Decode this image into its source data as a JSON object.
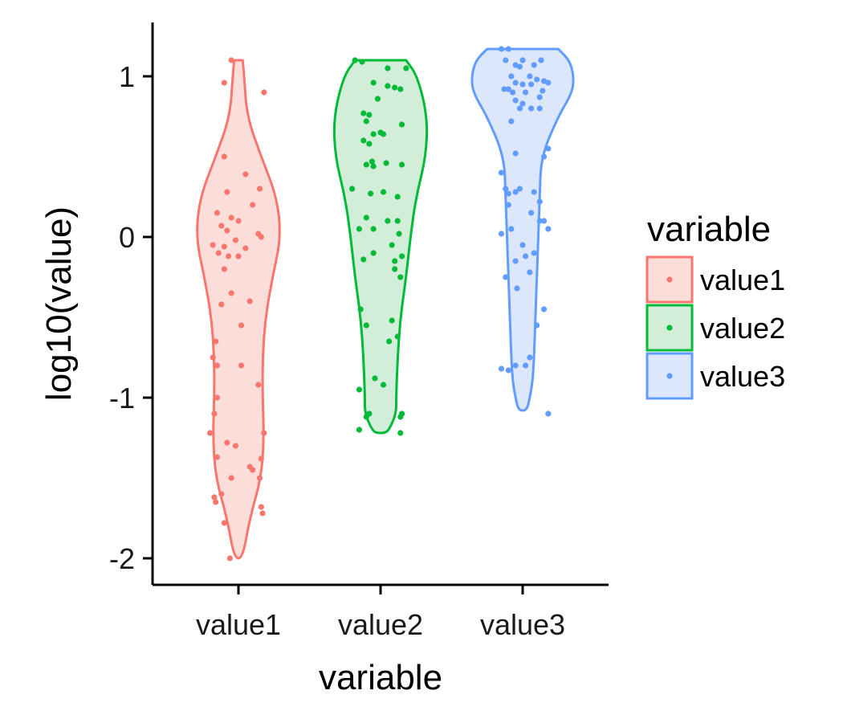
{
  "chart_data": {
    "type": "violin",
    "title": "",
    "xlabel": "variable",
    "ylabel": "log10(value)",
    "ylim": [
      -2.15,
      1.35
    ],
    "yticks": [
      1,
      0,
      -1,
      -2
    ],
    "ytick_labels": [
      "1",
      "0",
      "-1",
      "-2"
    ],
    "categories": [
      "value1",
      "value2",
      "value3"
    ],
    "grid": false,
    "legend": {
      "title": "variable",
      "placement": "right",
      "entries": [
        "value1",
        "value2",
        "value3"
      ]
    },
    "series": [
      {
        "name": "value1",
        "color": "#F8766D",
        "fill": "#FBDDDA",
        "profile": [
          [
            1.1,
            0.03
          ],
          [
            1.0,
            0.04
          ],
          [
            0.75,
            0.06
          ],
          [
            0.5,
            0.16
          ],
          [
            0.25,
            0.27
          ],
          [
            0.0,
            0.3
          ],
          [
            -0.25,
            0.24
          ],
          [
            -0.5,
            0.19
          ],
          [
            -0.75,
            0.17
          ],
          [
            -1.0,
            0.17
          ],
          [
            -1.25,
            0.18
          ],
          [
            -1.5,
            0.16
          ],
          [
            -1.75,
            0.08
          ],
          [
            -2.0,
            0.03
          ]
        ],
        "points": [
          [
            -0.05,
            1.1
          ],
          [
            -0.1,
            0.96
          ],
          [
            0.18,
            0.9
          ],
          [
            -0.1,
            0.5
          ],
          [
            0.05,
            0.39
          ],
          [
            0.15,
            0.3
          ],
          [
            -0.08,
            0.28
          ],
          [
            0.1,
            0.2
          ],
          [
            -0.15,
            0.15
          ],
          [
            -0.05,
            0.12
          ],
          [
            0.0,
            0.1
          ],
          [
            -0.12,
            0.07
          ],
          [
            -0.08,
            0.04
          ],
          [
            0.14,
            0.02
          ],
          [
            0.16,
            0.0
          ],
          [
            -0.02,
            -0.02
          ],
          [
            -0.18,
            -0.05
          ],
          [
            -0.1,
            -0.06
          ],
          [
            0.05,
            -0.07
          ],
          [
            -0.14,
            -0.1
          ],
          [
            -0.07,
            -0.12
          ],
          [
            0.0,
            -0.12
          ],
          [
            -0.1,
            -0.2
          ],
          [
            -0.05,
            -0.35
          ],
          [
            0.08,
            -0.4
          ],
          [
            -0.12,
            -0.42
          ],
          [
            0.02,
            -0.55
          ],
          [
            -0.16,
            -0.65
          ],
          [
            -0.18,
            -0.75
          ],
          [
            -0.15,
            -0.8
          ],
          [
            0.02,
            -0.8
          ],
          [
            0.14,
            -0.92
          ],
          [
            -0.15,
            -1.0
          ],
          [
            -0.17,
            -1.1
          ],
          [
            -0.2,
            -1.22
          ],
          [
            -0.08,
            -1.28
          ],
          [
            -0.02,
            -1.3
          ],
          [
            0.18,
            -1.22
          ],
          [
            -0.15,
            -1.37
          ],
          [
            0.16,
            -1.38
          ],
          [
            0.08,
            -1.43
          ],
          [
            0.1,
            -1.45
          ],
          [
            -0.05,
            -1.5
          ],
          [
            0.15,
            -1.5
          ],
          [
            -0.12,
            -1.6
          ],
          [
            -0.17,
            -1.62
          ],
          [
            -0.16,
            -1.65
          ],
          [
            0.16,
            -1.68
          ],
          [
            0.17,
            -1.72
          ],
          [
            -0.1,
            -1.78
          ],
          [
            -0.06,
            -2.0
          ]
        ]
      },
      {
        "name": "value2",
        "color": "#00BA38",
        "fill": "#D3EED8",
        "profile": [
          [
            1.1,
            0.18
          ],
          [
            1.0,
            0.26
          ],
          [
            0.75,
            0.33
          ],
          [
            0.5,
            0.32
          ],
          [
            0.25,
            0.25
          ],
          [
            0.0,
            0.21
          ],
          [
            -0.25,
            0.18
          ],
          [
            -0.5,
            0.14
          ],
          [
            -0.75,
            0.12
          ],
          [
            -1.0,
            0.11
          ],
          [
            -1.1,
            0.11
          ],
          [
            -1.2,
            0.06
          ],
          [
            -1.22,
            0.03
          ]
        ],
        "points": [
          [
            -0.18,
            1.1
          ],
          [
            -0.13,
            1.09
          ],
          [
            0.05,
            1.05
          ],
          [
            -0.05,
            0.96
          ],
          [
            0.18,
            1.05
          ],
          [
            0.1,
            0.93
          ],
          [
            0.05,
            0.94
          ],
          [
            0.14,
            0.92
          ],
          [
            -0.02,
            0.86
          ],
          [
            -0.12,
            0.77
          ],
          [
            -0.08,
            0.76
          ],
          [
            -0.1,
            0.72
          ],
          [
            0.0,
            0.65
          ],
          [
            0.15,
            0.7
          ],
          [
            -0.05,
            0.64
          ],
          [
            0.02,
            0.64
          ],
          [
            -0.12,
            0.6
          ],
          [
            -0.08,
            0.58
          ],
          [
            -0.06,
            0.47
          ],
          [
            0.04,
            0.46
          ],
          [
            -0.1,
            0.45
          ],
          [
            0.15,
            0.45
          ],
          [
            -0.05,
            0.44
          ],
          [
            0.02,
            0.28
          ],
          [
            -0.2,
            0.3
          ],
          [
            0.12,
            0.25
          ],
          [
            -0.07,
            0.27
          ],
          [
            -0.1,
            0.12
          ],
          [
            0.05,
            0.1
          ],
          [
            0.12,
            0.1
          ],
          [
            -0.15,
            0.05
          ],
          [
            -0.05,
            0.05
          ],
          [
            0.13,
            0.02
          ],
          [
            0.08,
            -0.05
          ],
          [
            -0.05,
            -0.1
          ],
          [
            0.1,
            -0.15
          ],
          [
            0.15,
            -0.12
          ],
          [
            -0.12,
            -0.14
          ],
          [
            0.1,
            -0.2
          ],
          [
            0.14,
            -0.25
          ],
          [
            -0.14,
            -0.45
          ],
          [
            0.08,
            -0.52
          ],
          [
            -0.1,
            -0.55
          ],
          [
            0.12,
            -0.62
          ],
          [
            0.06,
            -0.65
          ],
          [
            -0.04,
            -0.88
          ],
          [
            0.02,
            -0.92
          ],
          [
            -0.15,
            -0.95
          ],
          [
            -0.08,
            -1.1
          ],
          [
            -0.1,
            -1.12
          ],
          [
            0.14,
            -1.12
          ],
          [
            0.15,
            -1.1
          ],
          [
            -0.15,
            -1.2
          ],
          [
            0.14,
            -1.22
          ]
        ]
      },
      {
        "name": "value3",
        "color": "#619CFF",
        "fill": "#DCE7FB",
        "profile": [
          [
            1.17,
            0.25
          ],
          [
            1.1,
            0.33
          ],
          [
            1.0,
            0.36
          ],
          [
            0.9,
            0.35
          ],
          [
            0.75,
            0.25
          ],
          [
            0.5,
            0.13
          ],
          [
            0.25,
            0.12
          ],
          [
            0.0,
            0.11
          ],
          [
            -0.25,
            0.1
          ],
          [
            -0.5,
            0.09
          ],
          [
            -0.75,
            0.08
          ],
          [
            -0.9,
            0.07
          ],
          [
            -1.0,
            0.05
          ],
          [
            -1.08,
            0.03
          ]
        ],
        "points": [
          [
            -0.15,
            1.17
          ],
          [
            -0.1,
            1.17
          ],
          [
            -0.12,
            1.1
          ],
          [
            0.0,
            1.1
          ],
          [
            0.13,
            1.1
          ],
          [
            -0.05,
            1.07
          ],
          [
            0.08,
            1.07
          ],
          [
            -0.02,
            1.06
          ],
          [
            -0.08,
            1.0
          ],
          [
            0.05,
            1.0
          ],
          [
            0.1,
            0.98
          ],
          [
            0.15,
            0.97
          ],
          [
            0.18,
            0.96
          ],
          [
            -0.05,
            0.96
          ],
          [
            0.0,
            0.95
          ],
          [
            0.06,
            0.95
          ],
          [
            -0.1,
            0.92
          ],
          [
            0.14,
            0.91
          ],
          [
            -0.13,
            0.92
          ],
          [
            -0.07,
            0.9
          ],
          [
            0.02,
            0.9
          ],
          [
            0.12,
            0.87
          ],
          [
            -0.05,
            0.85
          ],
          [
            0.0,
            0.83
          ],
          [
            -0.02,
            0.8
          ],
          [
            0.06,
            0.8
          ],
          [
            0.12,
            0.8
          ],
          [
            -0.08,
            0.72
          ],
          [
            0.18,
            0.55
          ],
          [
            0.15,
            0.5
          ],
          [
            -0.05,
            0.52
          ],
          [
            -0.15,
            0.4
          ],
          [
            -0.12,
            0.3
          ],
          [
            -0.02,
            0.3
          ],
          [
            0.08,
            0.28
          ],
          [
            -0.05,
            0.28
          ],
          [
            -0.1,
            0.27
          ],
          [
            0.12,
            0.22
          ],
          [
            -0.1,
            0.2
          ],
          [
            0.06,
            0.15
          ],
          [
            0.15,
            0.1
          ],
          [
            0.12,
            0.1
          ],
          [
            -0.08,
            0.05
          ],
          [
            0.18,
            0.05
          ],
          [
            -0.15,
            0.02
          ],
          [
            0.0,
            -0.05
          ],
          [
            0.08,
            -0.1
          ],
          [
            0.02,
            -0.12
          ],
          [
            -0.05,
            -0.15
          ],
          [
            0.05,
            -0.22
          ],
          [
            -0.12,
            -0.25
          ],
          [
            -0.04,
            -0.32
          ],
          [
            0.15,
            -0.45
          ],
          [
            0.1,
            -0.55
          ],
          [
            0.05,
            -0.75
          ],
          [
            0.02,
            -0.8
          ],
          [
            -0.05,
            -0.8
          ],
          [
            -0.15,
            -0.82
          ],
          [
            -0.1,
            -0.83
          ],
          [
            0.18,
            -1.1
          ]
        ]
      }
    ]
  }
}
